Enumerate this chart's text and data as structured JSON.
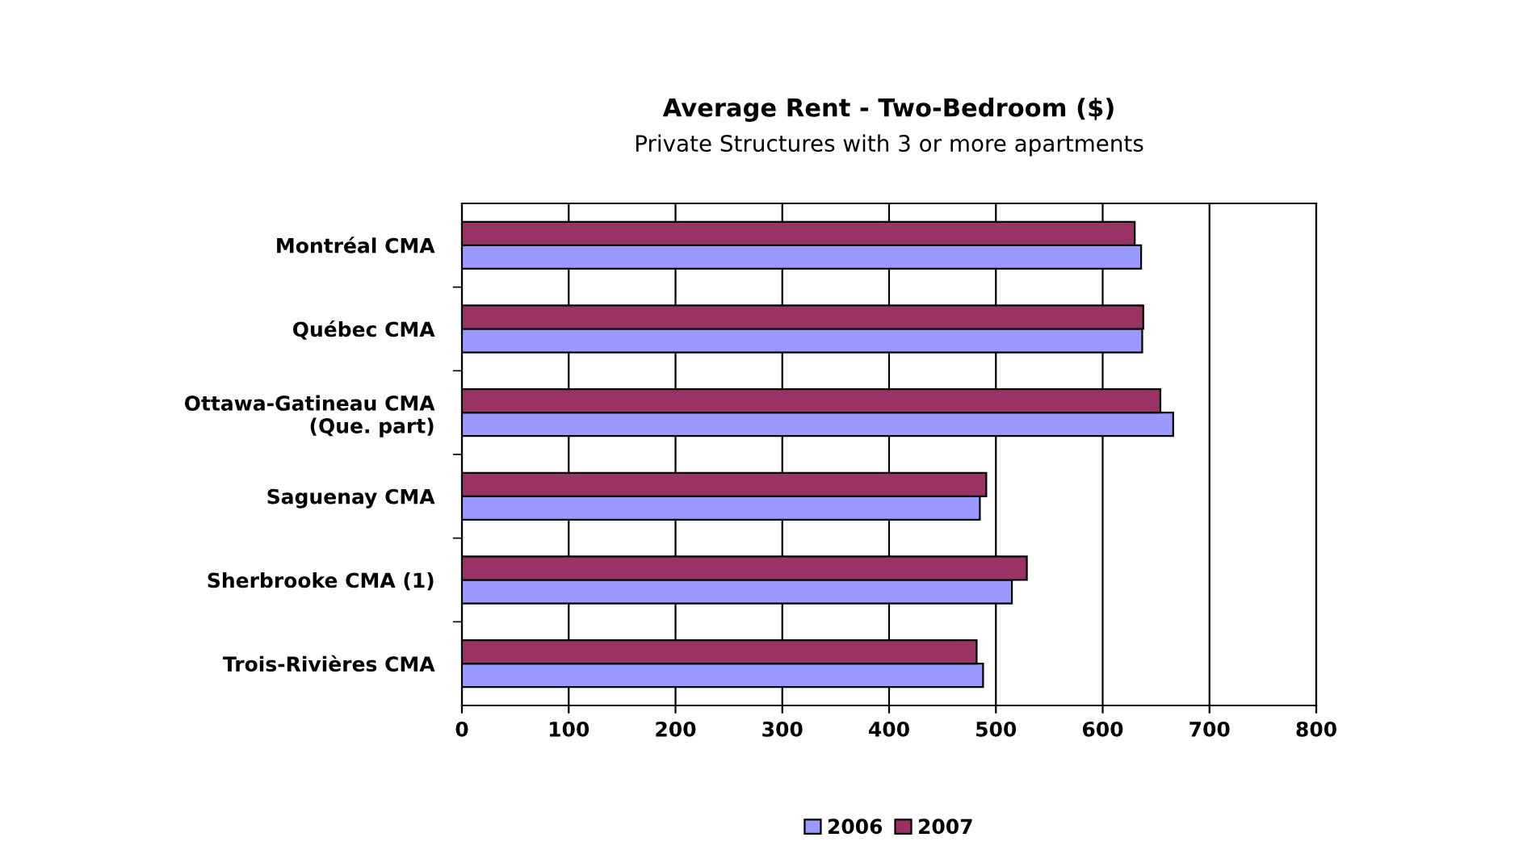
{
  "chart_data": {
    "type": "bar",
    "orientation": "horizontal",
    "title": "Average Rent - Two-Bedroom ($)",
    "subtitle": "Private Structures with 3 or more apartments",
    "categories": [
      "Montréal CMA",
      "Québec CMA",
      "Ottawa-Gatineau CMA\n(Que. part)",
      "Saguenay CMA",
      "Sherbrooke CMA (1)",
      "Trois-Rivières CMA"
    ],
    "series": [
      {
        "name": "2006",
        "color": "#9999ff",
        "values": [
          636,
          637,
          666,
          485,
          515,
          488
        ]
      },
      {
        "name": "2007",
        "color": "#993366",
        "values": [
          630,
          638,
          654,
          491,
          529,
          482
        ]
      }
    ],
    "xlim": [
      0,
      800
    ],
    "xticks": [
      0,
      100,
      200,
      300,
      400,
      500,
      600,
      700,
      800
    ],
    "grid": "x",
    "legend": "bottom"
  }
}
